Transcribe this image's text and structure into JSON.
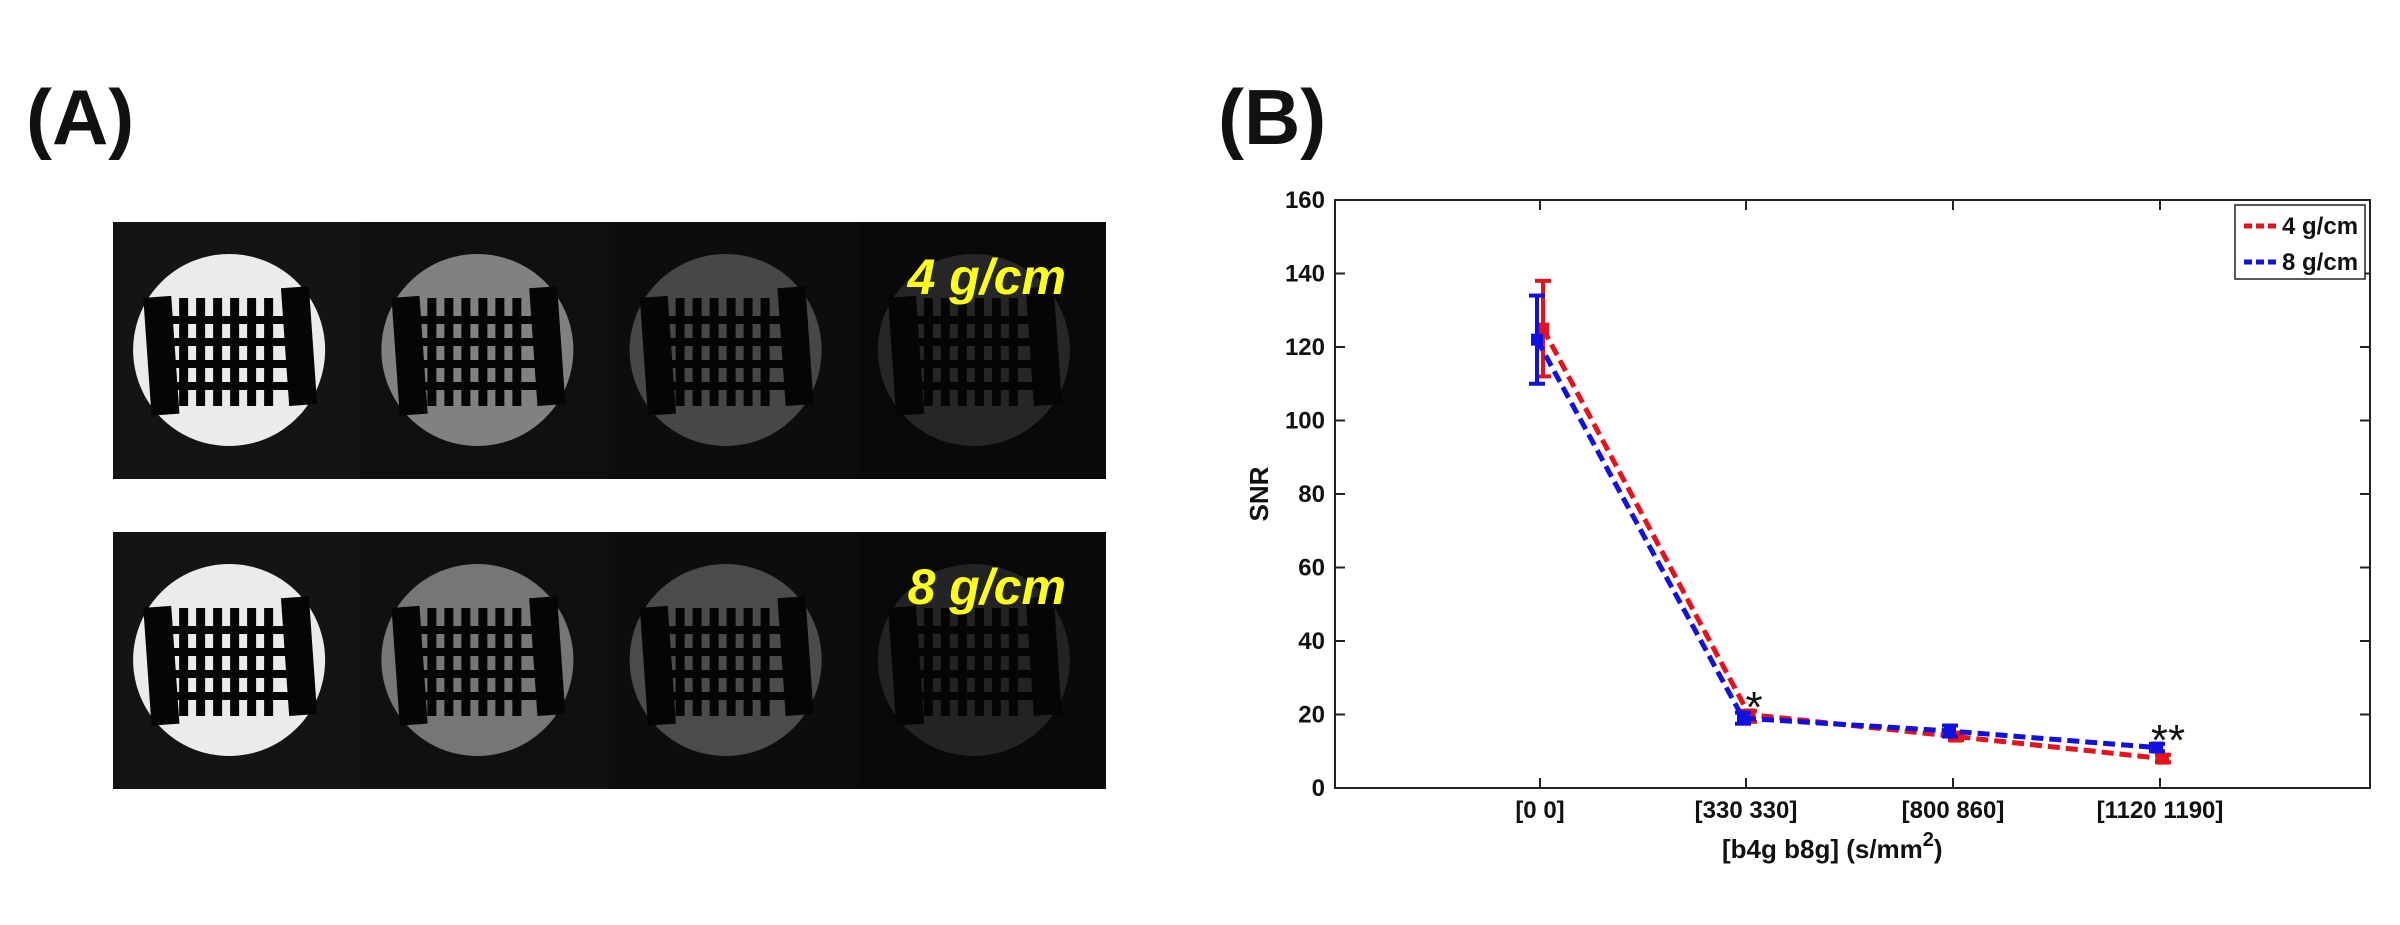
{
  "panels": {
    "a_label": "(A)",
    "b_label": "(B)"
  },
  "image_strips": [
    {
      "label": "4 g/cm",
      "label_color": "#ffff1a",
      "brightness": [
        1.0,
        0.55,
        0.3,
        0.16
      ]
    },
    {
      "label": "8 g/cm",
      "label_color": "#ffff1a",
      "brightness": [
        1.0,
        0.5,
        0.32,
        0.15
      ]
    }
  ],
  "chart_data": {
    "type": "line",
    "categories": [
      "[0 0]",
      "[330 330]",
      "[800 860]",
      "[1120 1190]"
    ],
    "xlabel": "[b4g b8g] (s/mm",
    "xlabel_superscript": "2",
    "xlabel_suffix": ")",
    "ylabel": "SNR",
    "ylim": [
      0,
      160
    ],
    "yticks": [
      0,
      20,
      40,
      60,
      80,
      100,
      120,
      140,
      160
    ],
    "grid": false,
    "legend_position": "top-right",
    "series": [
      {
        "name": "4 g/cm",
        "color": "#e8101a",
        "values": [
          125,
          20,
          14,
          8
        ],
        "error_low": [
          112,
          18,
          13,
          7
        ],
        "error_high": [
          138,
          21,
          15,
          9
        ]
      },
      {
        "name": "8 g/cm",
        "color": "#1010e0",
        "values": [
          122,
          19,
          15.5,
          11
        ],
        "error_low": [
          110,
          17.5,
          14,
          10
        ],
        "error_high": [
          134,
          20.5,
          17,
          12
        ]
      }
    ],
    "annotations": [
      {
        "text": "*",
        "category_index": 1,
        "y": 24
      },
      {
        "text": "**",
        "category_index": 3,
        "y": 15
      }
    ]
  }
}
